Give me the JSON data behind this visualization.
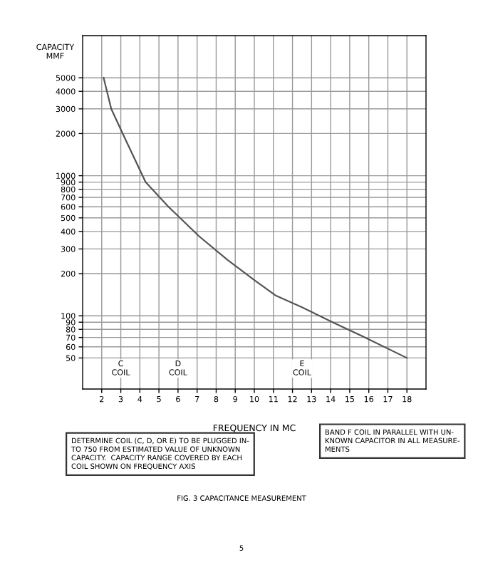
{
  "chart_data": {
    "type": "line",
    "title": "FIG. 3 CAPACITANCE MEASUREMENT",
    "xlabel": "FREQUENCY IN MC",
    "ylabel": "CAPACITY\nMMF",
    "x": [
      2.1,
      2.5,
      3.1,
      4.3,
      5.5,
      7.1,
      8.6,
      10,
      11.1,
      12.5,
      14.1,
      16,
      18
    ],
    "series": [
      {
        "color": "#555555",
        "values": [
          5000,
          3000,
          2000,
          900,
          600,
          370,
          250,
          180,
          140,
          115,
          90,
          68,
          50
        ]
      }
    ],
    "log": "y",
    "xlim": [
      1,
      19
    ],
    "ylim": [
      30,
      10000
    ],
    "xticks": [
      2,
      3,
      4,
      5,
      6,
      7,
      8,
      9,
      10,
      11,
      12,
      13,
      14,
      15,
      16,
      17,
      18
    ],
    "yticks": [
      50,
      60,
      70,
      80,
      90,
      100,
      200,
      300,
      400,
      500,
      600,
      700,
      800,
      900,
      1000,
      2000,
      3000,
      4000,
      5000
    ],
    "grid": true,
    "marker": "none",
    "line_style": "solid",
    "annotations": [
      {
        "text": "C\nCOIL",
        "x": 3,
        "y": 42
      },
      {
        "text": "D\nCOIL",
        "x": 6,
        "y": 42
      },
      {
        "text": "E\nCOIL",
        "x": 12.5,
        "y": 42
      },
      "DETERMINE COIL (C, D, OR E) TO BE PLUGGED IN-\nTO 750 FROM ESTIMATED VALUE OF UNKNOWN\nCAPACITY.  CAPACITY RANGE COVERED BY EACH\nCOIL SHOWN ON FREQUENCY AXIS",
      "BAND F COIL IN PARALLEL WITH UN-\nKNOWN CAPACITOR IN ALL MEASURE-\nMENTS",
      "5"
    ]
  }
}
